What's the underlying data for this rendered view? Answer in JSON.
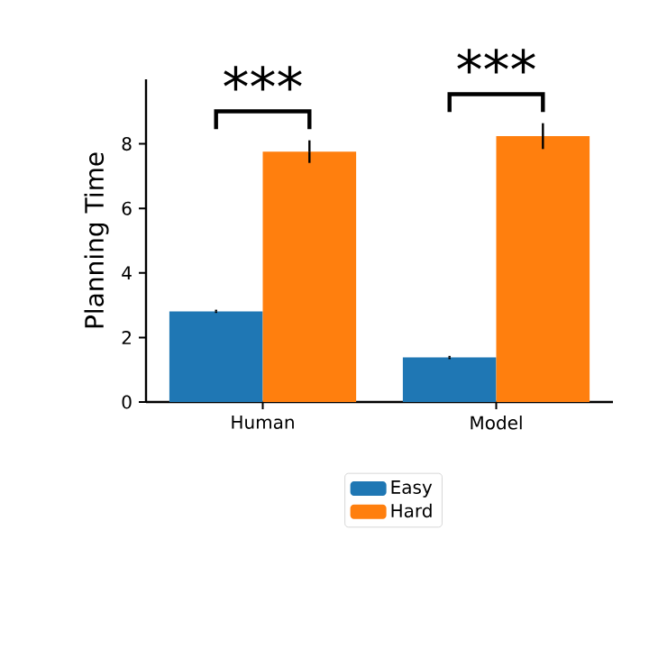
{
  "chart_data": {
    "type": "bar",
    "ylabel": "Planning Time",
    "categories": [
      "Human",
      "Model"
    ],
    "series": [
      {
        "name": "Easy",
        "color": "#1f77b4",
        "values": [
          2.81,
          1.38
        ],
        "errors": [
          0.05,
          0.05
        ]
      },
      {
        "name": "Hard",
        "color": "#ff7f0e",
        "values": [
          7.76,
          8.24
        ],
        "errors": [
          0.35,
          0.4
        ]
      }
    ],
    "ylim": [
      0,
      10
    ],
    "yticks": [
      0,
      2,
      4,
      6,
      8
    ],
    "annotations": [
      "***",
      "***"
    ],
    "legend": "bottom",
    "grid": false
  }
}
